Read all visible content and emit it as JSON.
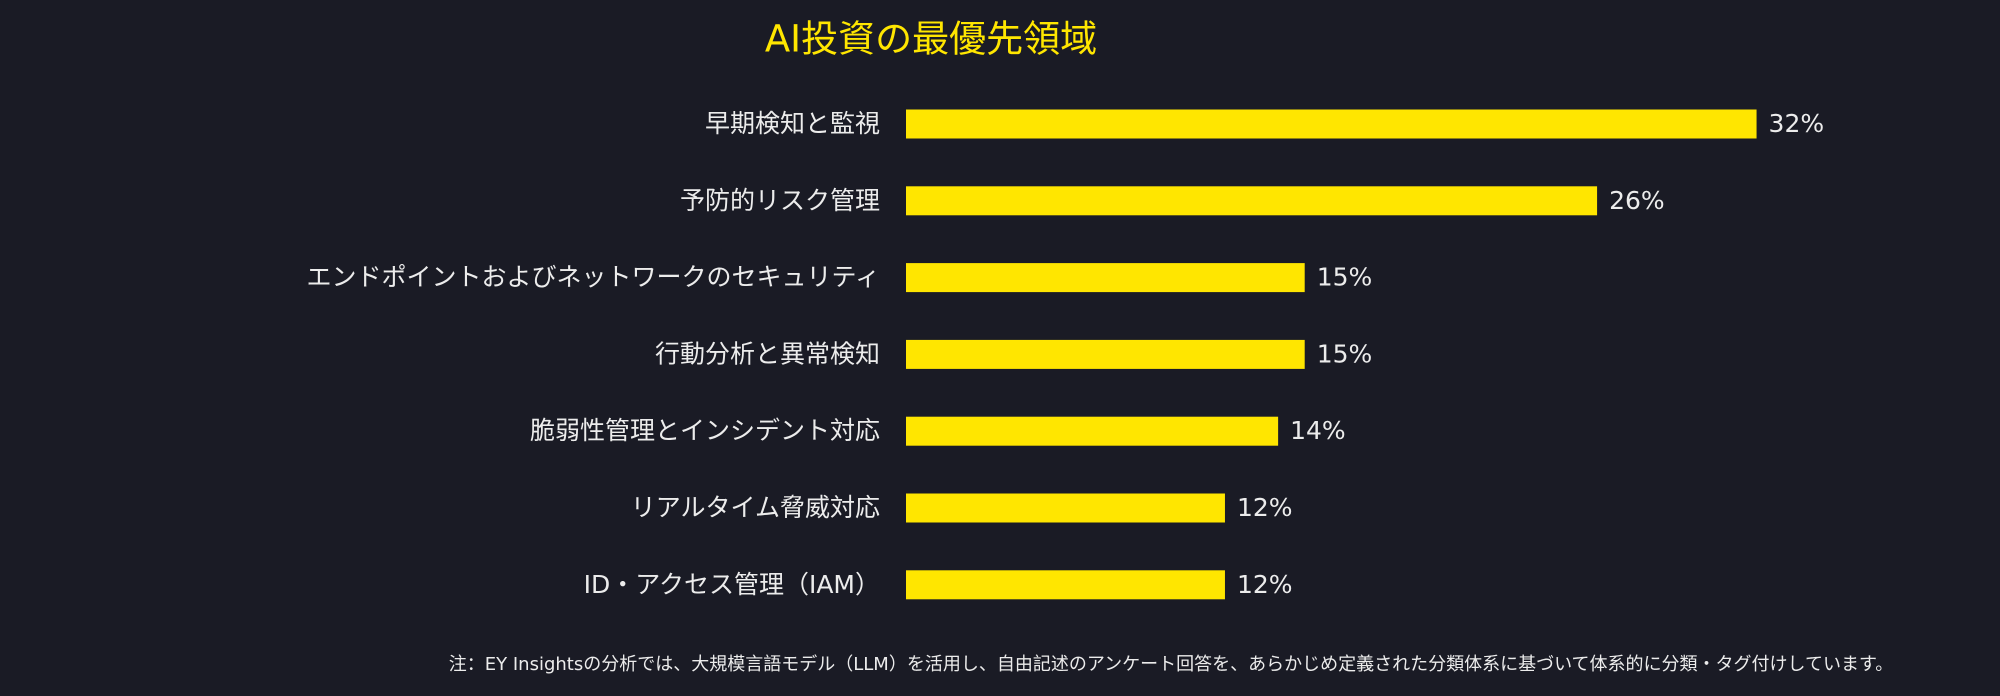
{
  "chart_data": {
    "type": "bar",
    "orientation": "horizontal",
    "title": "AI投資の最優先領域",
    "categories": [
      "早期検知と監視",
      "予防的リスク管理",
      "エンドポイントおよびネットワークのセキュリティ",
      "行動分析と異常検知",
      "脆弱性管理とインシデント対応",
      "リアルタイム脅威対応",
      "ID・アクセス管理（IAM）"
    ],
    "values": [
      32,
      26,
      15,
      15,
      14,
      12,
      12
    ],
    "value_labels": [
      "32%",
      "26%",
      "15%",
      "15%",
      "14%",
      "12%",
      "12%"
    ],
    "color": "#ffe600",
    "note": "注：EY Insightsの分析では、大規模言語モデル（LLM）を活用し、自由記述のアンケート回答を、あらかじめ定義された分類体系に基づいて体系的に分類・タグ付けしています。"
  }
}
